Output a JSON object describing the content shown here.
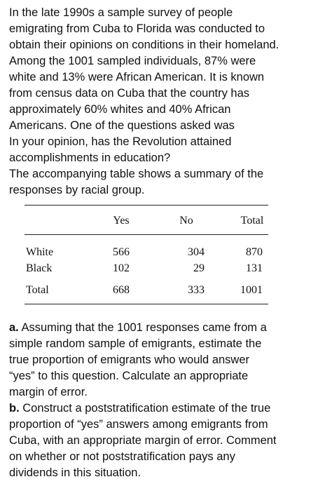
{
  "intro_lines": [
    "In the late 1990s a sample survey of people",
    "emigrating from Cuba to Florida was conducted to",
    "obtain their opinions on conditions in their homeland.",
    "Among the 1001 sampled individuals, 87% were",
    "white and 13% were African American. It is known",
    "from census data on Cuba that the country has",
    "approximately 60% whites and 40% African",
    "Americans. One of the questions asked was",
    "In your opinion, has the Revolution attained",
    "accomplishments in education?",
    "The accompanying table shows a summary of the",
    "responses by racial group."
  ],
  "table": {
    "headers": {
      "yes": "Yes",
      "no": "No",
      "total": "Total"
    },
    "rows": [
      {
        "label": "White",
        "yes": "566",
        "no": "304",
        "total": "870"
      },
      {
        "label": "Black",
        "yes": "102",
        "no": "29",
        "total": "131"
      }
    ],
    "total_row": {
      "label": "Total",
      "yes": "668",
      "no": "333",
      "total": "1001"
    }
  },
  "part_a": {
    "marker": "a.",
    "lines": [
      " Assuming that the 1001 responses came from a",
      "simple random sample of emigrants, estimate the",
      "true proportion of emigrants who would answer",
      "“yes” to this question. Calculate an appropriate",
      "margin of error."
    ]
  },
  "part_b": {
    "marker": "b.",
    "lines": [
      " Construct a poststratification estimate of the true",
      "proportion of “yes” answers among emigrants from",
      "Cuba, with an appropriate margin of error. Comment",
      "on whether or not poststratification pays any",
      "dividends in this situation."
    ]
  }
}
